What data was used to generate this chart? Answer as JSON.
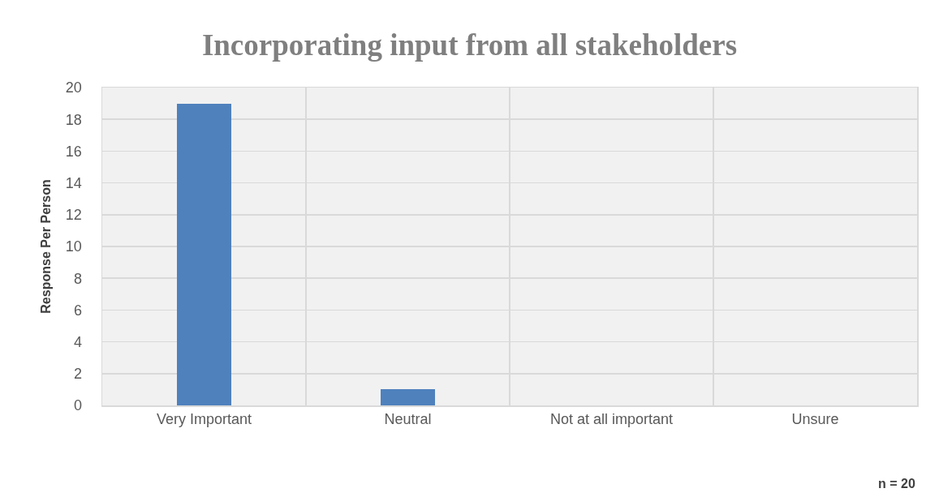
{
  "chart_data": {
    "type": "bar",
    "title": "Incorporating input from all stakeholders",
    "ylabel": "Response Per Person",
    "categories": [
      "Very Important",
      "Neutral",
      "Not at all important",
      "Unsure"
    ],
    "values": [
      19,
      1,
      0,
      0
    ],
    "color": "#4f81bd",
    "ylim": [
      0,
      20
    ],
    "yticks": [
      0,
      2,
      4,
      6,
      8,
      10,
      12,
      14,
      16,
      18,
      20
    ],
    "grid": true,
    "legend": false,
    "annotations": [
      "n = 20"
    ]
  }
}
